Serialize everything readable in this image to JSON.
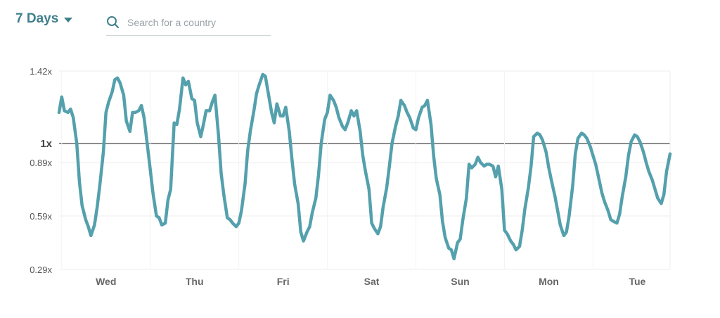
{
  "controls": {
    "range_label": "7 Days",
    "search_placeholder": "Search for a country"
  },
  "icons": {
    "dropdown": "caret-down-icon",
    "search": "search-icon"
  },
  "colors": {
    "accent": "#3f7f8c",
    "line": "#54a0ad",
    "baseline": "#666666"
  },
  "chart_data": {
    "type": "line",
    "x_tick_labels": [
      "Wed",
      "Thu",
      "Fri",
      "Sat",
      "Sun",
      "Mon",
      "Tue"
    ],
    "xlim": [
      -0.53,
      6.37
    ],
    "y_tick_labels": [
      "0.29x",
      "0.59x",
      "0.89x",
      "1x",
      "1.42x"
    ],
    "y_tick_values": [
      0.29,
      0.59,
      0.89,
      1.0,
      1.42
    ],
    "ylim": [
      0.29,
      1.42
    ],
    "baseline": 1.0,
    "grid": true,
    "series": [
      {
        "values": [
          [
            -0.53,
            1.18
          ],
          [
            -0.5,
            1.27
          ],
          [
            -0.47,
            1.19
          ],
          [
            -0.43,
            1.18
          ],
          [
            -0.4,
            1.2
          ],
          [
            -0.37,
            1.15
          ],
          [
            -0.33,
            1.0
          ],
          [
            -0.3,
            0.78
          ],
          [
            -0.27,
            0.65
          ],
          [
            -0.23,
            0.57
          ],
          [
            -0.2,
            0.53
          ],
          [
            -0.17,
            0.48
          ],
          [
            -0.13,
            0.54
          ],
          [
            -0.1,
            0.64
          ],
          [
            -0.07,
            0.76
          ],
          [
            -0.03,
            0.95
          ],
          [
            0.0,
            1.18
          ],
          [
            0.03,
            1.24
          ],
          [
            0.07,
            1.3
          ],
          [
            0.1,
            1.37
          ],
          [
            0.13,
            1.38
          ],
          [
            0.16,
            1.35
          ],
          [
            0.2,
            1.28
          ],
          [
            0.23,
            1.13
          ],
          [
            0.27,
            1.07
          ],
          [
            0.3,
            1.18
          ],
          [
            0.33,
            1.18
          ],
          [
            0.37,
            1.19
          ],
          [
            0.4,
            1.22
          ],
          [
            0.43,
            1.15
          ],
          [
            0.47,
            0.98
          ],
          [
            0.5,
            0.85
          ],
          [
            0.53,
            0.72
          ],
          [
            0.57,
            0.59
          ],
          [
            0.6,
            0.58
          ],
          [
            0.63,
            0.54
          ],
          [
            0.67,
            0.55
          ],
          [
            0.7,
            0.68
          ],
          [
            0.73,
            0.74
          ],
          [
            0.77,
            1.12
          ],
          [
            0.8,
            1.11
          ],
          [
            0.83,
            1.2
          ],
          [
            0.87,
            1.38
          ],
          [
            0.9,
            1.34
          ],
          [
            0.93,
            1.36
          ],
          [
            0.97,
            1.26
          ],
          [
            1.0,
            1.25
          ],
          [
            1.03,
            1.12
          ],
          [
            1.07,
            1.04
          ],
          [
            1.1,
            1.11
          ],
          [
            1.13,
            1.19
          ],
          [
            1.17,
            1.19
          ],
          [
            1.2,
            1.24
          ],
          [
            1.23,
            1.28
          ],
          [
            1.27,
            1.05
          ],
          [
            1.3,
            0.83
          ],
          [
            1.33,
            0.71
          ],
          [
            1.37,
            0.58
          ],
          [
            1.4,
            0.57
          ],
          [
            1.43,
            0.55
          ],
          [
            1.47,
            0.53
          ],
          [
            1.5,
            0.55
          ],
          [
            1.53,
            0.62
          ],
          [
            1.57,
            0.77
          ],
          [
            1.6,
            0.96
          ],
          [
            1.63,
            1.07
          ],
          [
            1.67,
            1.19
          ],
          [
            1.7,
            1.29
          ],
          [
            1.73,
            1.34
          ],
          [
            1.77,
            1.4
          ],
          [
            1.8,
            1.39
          ],
          [
            1.83,
            1.3
          ],
          [
            1.87,
            1.18
          ],
          [
            1.9,
            1.12
          ],
          [
            1.93,
            1.23
          ],
          [
            1.97,
            1.16
          ],
          [
            2.0,
            1.16
          ],
          [
            2.03,
            1.21
          ],
          [
            2.07,
            1.07
          ],
          [
            2.1,
            0.91
          ],
          [
            2.13,
            0.77
          ],
          [
            2.17,
            0.66
          ],
          [
            2.2,
            0.5
          ],
          [
            2.23,
            0.45
          ],
          [
            2.27,
            0.5
          ],
          [
            2.3,
            0.53
          ],
          [
            2.33,
            0.61
          ],
          [
            2.37,
            0.69
          ],
          [
            2.4,
            0.82
          ],
          [
            2.43,
            1.0
          ],
          [
            2.47,
            1.14
          ],
          [
            2.5,
            1.18
          ],
          [
            2.53,
            1.28
          ],
          [
            2.57,
            1.25
          ],
          [
            2.6,
            1.21
          ],
          [
            2.63,
            1.15
          ],
          [
            2.67,
            1.1
          ],
          [
            2.7,
            1.08
          ],
          [
            2.73,
            1.12
          ],
          [
            2.77,
            1.19
          ],
          [
            2.8,
            1.16
          ],
          [
            2.83,
            1.19
          ],
          [
            2.87,
            1.07
          ],
          [
            2.9,
            0.93
          ],
          [
            2.93,
            0.84
          ],
          [
            2.97,
            0.74
          ],
          [
            3.0,
            0.55
          ],
          [
            3.03,
            0.52
          ],
          [
            3.07,
            0.49
          ],
          [
            3.1,
            0.53
          ],
          [
            3.13,
            0.64
          ],
          [
            3.17,
            0.75
          ],
          [
            3.2,
            0.87
          ],
          [
            3.23,
            1.0
          ],
          [
            3.27,
            1.1
          ],
          [
            3.3,
            1.16
          ],
          [
            3.33,
            1.25
          ],
          [
            3.37,
            1.22
          ],
          [
            3.4,
            1.18
          ],
          [
            3.43,
            1.15
          ],
          [
            3.47,
            1.09
          ],
          [
            3.5,
            1.08
          ],
          [
            3.53,
            1.15
          ],
          [
            3.57,
            1.21
          ],
          [
            3.6,
            1.22
          ],
          [
            3.63,
            1.25
          ],
          [
            3.67,
            1.11
          ],
          [
            3.7,
            0.93
          ],
          [
            3.73,
            0.8
          ],
          [
            3.77,
            0.71
          ],
          [
            3.8,
            0.56
          ],
          [
            3.83,
            0.47
          ],
          [
            3.87,
            0.41
          ],
          [
            3.9,
            0.4
          ],
          [
            3.93,
            0.35
          ],
          [
            3.97,
            0.44
          ],
          [
            4.0,
            0.46
          ],
          [
            4.03,
            0.57
          ],
          [
            4.07,
            0.69
          ],
          [
            4.1,
            0.88
          ],
          [
            4.13,
            0.86
          ],
          [
            4.17,
            0.88
          ],
          [
            4.2,
            0.92
          ],
          [
            4.23,
            0.89
          ],
          [
            4.27,
            0.87
          ],
          [
            4.3,
            0.88
          ],
          [
            4.33,
            0.88
          ],
          [
            4.37,
            0.87
          ],
          [
            4.4,
            0.81
          ],
          [
            4.43,
            0.87
          ],
          [
            4.47,
            0.74
          ],
          [
            4.5,
            0.51
          ],
          [
            4.53,
            0.49
          ],
          [
            4.57,
            0.45
          ],
          [
            4.6,
            0.43
          ],
          [
            4.63,
            0.4
          ],
          [
            4.67,
            0.42
          ],
          [
            4.7,
            0.51
          ],
          [
            4.73,
            0.63
          ],
          [
            4.77,
            0.75
          ],
          [
            4.8,
            0.87
          ],
          [
            4.83,
            1.04
          ],
          [
            4.87,
            1.06
          ],
          [
            4.9,
            1.05
          ],
          [
            4.93,
            1.02
          ],
          [
            4.97,
            0.95
          ],
          [
            5.0,
            0.86
          ],
          [
            5.03,
            0.79
          ],
          [
            5.07,
            0.7
          ],
          [
            5.1,
            0.62
          ],
          [
            5.13,
            0.54
          ],
          [
            5.17,
            0.48
          ],
          [
            5.2,
            0.5
          ],
          [
            5.23,
            0.59
          ],
          [
            5.27,
            0.76
          ],
          [
            5.3,
            0.94
          ],
          [
            5.33,
            1.03
          ],
          [
            5.37,
            1.06
          ],
          [
            5.4,
            1.05
          ],
          [
            5.43,
            1.03
          ],
          [
            5.47,
            0.98
          ],
          [
            5.5,
            0.93
          ],
          [
            5.53,
            0.88
          ],
          [
            5.57,
            0.79
          ],
          [
            5.6,
            0.72
          ],
          [
            5.63,
            0.67
          ],
          [
            5.67,
            0.62
          ],
          [
            5.7,
            0.57
          ],
          [
            5.73,
            0.56
          ],
          [
            5.77,
            0.55
          ],
          [
            5.8,
            0.6
          ],
          [
            5.83,
            0.7
          ],
          [
            5.87,
            0.81
          ],
          [
            5.9,
            0.93
          ],
          [
            5.93,
            1.01
          ],
          [
            5.97,
            1.05
          ],
          [
            6.0,
            1.04
          ],
          [
            6.03,
            1.01
          ],
          [
            6.07,
            0.95
          ],
          [
            6.1,
            0.89
          ],
          [
            6.13,
            0.84
          ],
          [
            6.17,
            0.79
          ],
          [
            6.2,
            0.74
          ],
          [
            6.23,
            0.69
          ],
          [
            6.27,
            0.66
          ],
          [
            6.3,
            0.71
          ],
          [
            6.33,
            0.84
          ],
          [
            6.37,
            0.94
          ]
        ]
      }
    ]
  }
}
